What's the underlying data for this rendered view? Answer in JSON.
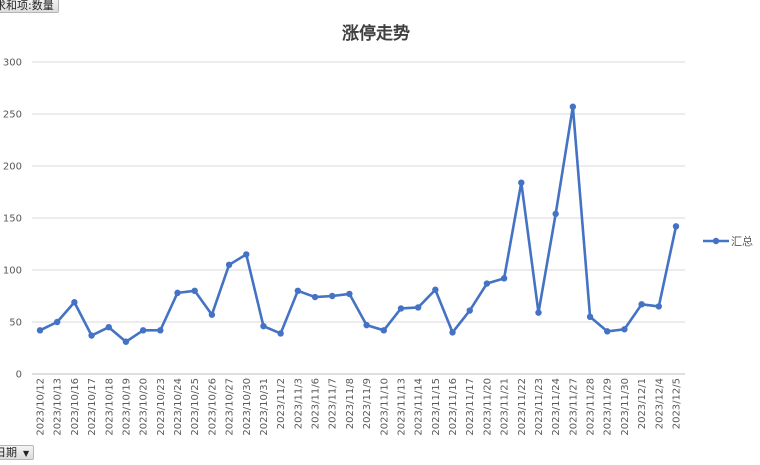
{
  "pivot": {
    "value_field": "求和项:数量",
    "axis_field": "日期"
  },
  "colors": {
    "series": "#4472C4",
    "grid": "#d9d9d9",
    "axis_text": "#595959"
  },
  "chart_data": {
    "type": "line",
    "title": "涨停走势",
    "xlabel": "",
    "ylabel": "",
    "ylim": [
      0,
      300
    ],
    "yticks": [
      0,
      50,
      100,
      150,
      200,
      250,
      300
    ],
    "grid": true,
    "legend_position": "right",
    "categories": [
      "2023/10/12",
      "2023/10/13",
      "2023/10/16",
      "2023/10/17",
      "2023/10/18",
      "2023/10/19",
      "2023/10/20",
      "2023/10/23",
      "2023/10/24",
      "2023/10/25",
      "2023/10/26",
      "2023/10/27",
      "2023/10/30",
      "2023/10/31",
      "2023/11/2",
      "2023/11/3",
      "2023/11/6",
      "2023/11/7",
      "2023/11/8",
      "2023/11/9",
      "2023/11/10",
      "2023/11/13",
      "2023/11/14",
      "2023/11/15",
      "2023/11/16",
      "2023/11/17",
      "2023/11/20",
      "2023/11/21",
      "2023/11/22",
      "2023/11/23",
      "2023/11/24",
      "2023/11/27",
      "2023/11/28",
      "2023/11/29",
      "2023/11/30",
      "2023/12/1",
      "2023/12/4",
      "2023/12/5"
    ],
    "series": [
      {
        "name": "汇总",
        "values": [
          42,
          50,
          69,
          37,
          45,
          31,
          42,
          42,
          78,
          80,
          57,
          105,
          115,
          46,
          39,
          80,
          74,
          75,
          77,
          47,
          42,
          63,
          64,
          81,
          40,
          61,
          87,
          92,
          184,
          59,
          154,
          257,
          55,
          41,
          43,
          67,
          65,
          142
        ]
      }
    ]
  }
}
